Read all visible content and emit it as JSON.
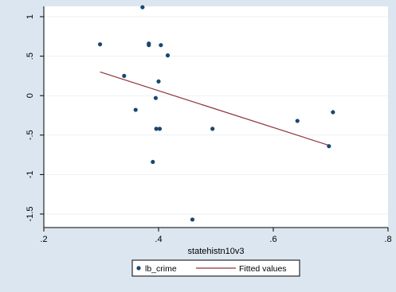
{
  "chart_data": {
    "type": "scatter",
    "title": "",
    "xlabel": "statehistn10v3",
    "ylabel": "",
    "xlim": [
      0.2,
      0.8
    ],
    "ylim": [
      -1.5,
      1
    ],
    "xticks": [
      ".2",
      ".4",
      ".6",
      ".8"
    ],
    "yticks": [
      "1",
      ".5",
      "0",
      "-.5",
      "-1",
      "-1.5"
    ],
    "xtick_values": [
      0.2,
      0.4,
      0.6,
      0.8
    ],
    "ytick_values": [
      1,
      0.5,
      0,
      -0.5,
      -1,
      -1.5
    ],
    "grid": "horizontal",
    "legend_position": "bottom",
    "series": [
      {
        "name": "lb_crime",
        "kind": "scatter",
        "color": "#1a476f",
        "points": [
          {
            "x": 0.298,
            "y": 0.65
          },
          {
            "x": 0.34,
            "y": 0.25
          },
          {
            "x": 0.36,
            "y": -0.18
          },
          {
            "x": 0.372,
            "y": 1.12
          },
          {
            "x": 0.383,
            "y": 0.66
          },
          {
            "x": 0.383,
            "y": 0.64
          },
          {
            "x": 0.39,
            "y": -0.84
          },
          {
            "x": 0.395,
            "y": -0.03
          },
          {
            "x": 0.396,
            "y": -0.42
          },
          {
            "x": 0.4,
            "y": 0.18
          },
          {
            "x": 0.402,
            "y": -0.42
          },
          {
            "x": 0.404,
            "y": 0.64
          },
          {
            "x": 0.416,
            "y": 0.51
          },
          {
            "x": 0.459,
            "y": -1.57
          },
          {
            "x": 0.494,
            "y": -0.42
          },
          {
            "x": 0.642,
            "y": -0.32
          },
          {
            "x": 0.697,
            "y": -0.64
          },
          {
            "x": 0.704,
            "y": -0.21
          }
        ]
      },
      {
        "name": "Fitted values",
        "kind": "line",
        "color": "#90353b",
        "points": [
          {
            "x": 0.298,
            "y": 0.3
          },
          {
            "x": 0.697,
            "y": -0.63
          }
        ]
      }
    ]
  }
}
